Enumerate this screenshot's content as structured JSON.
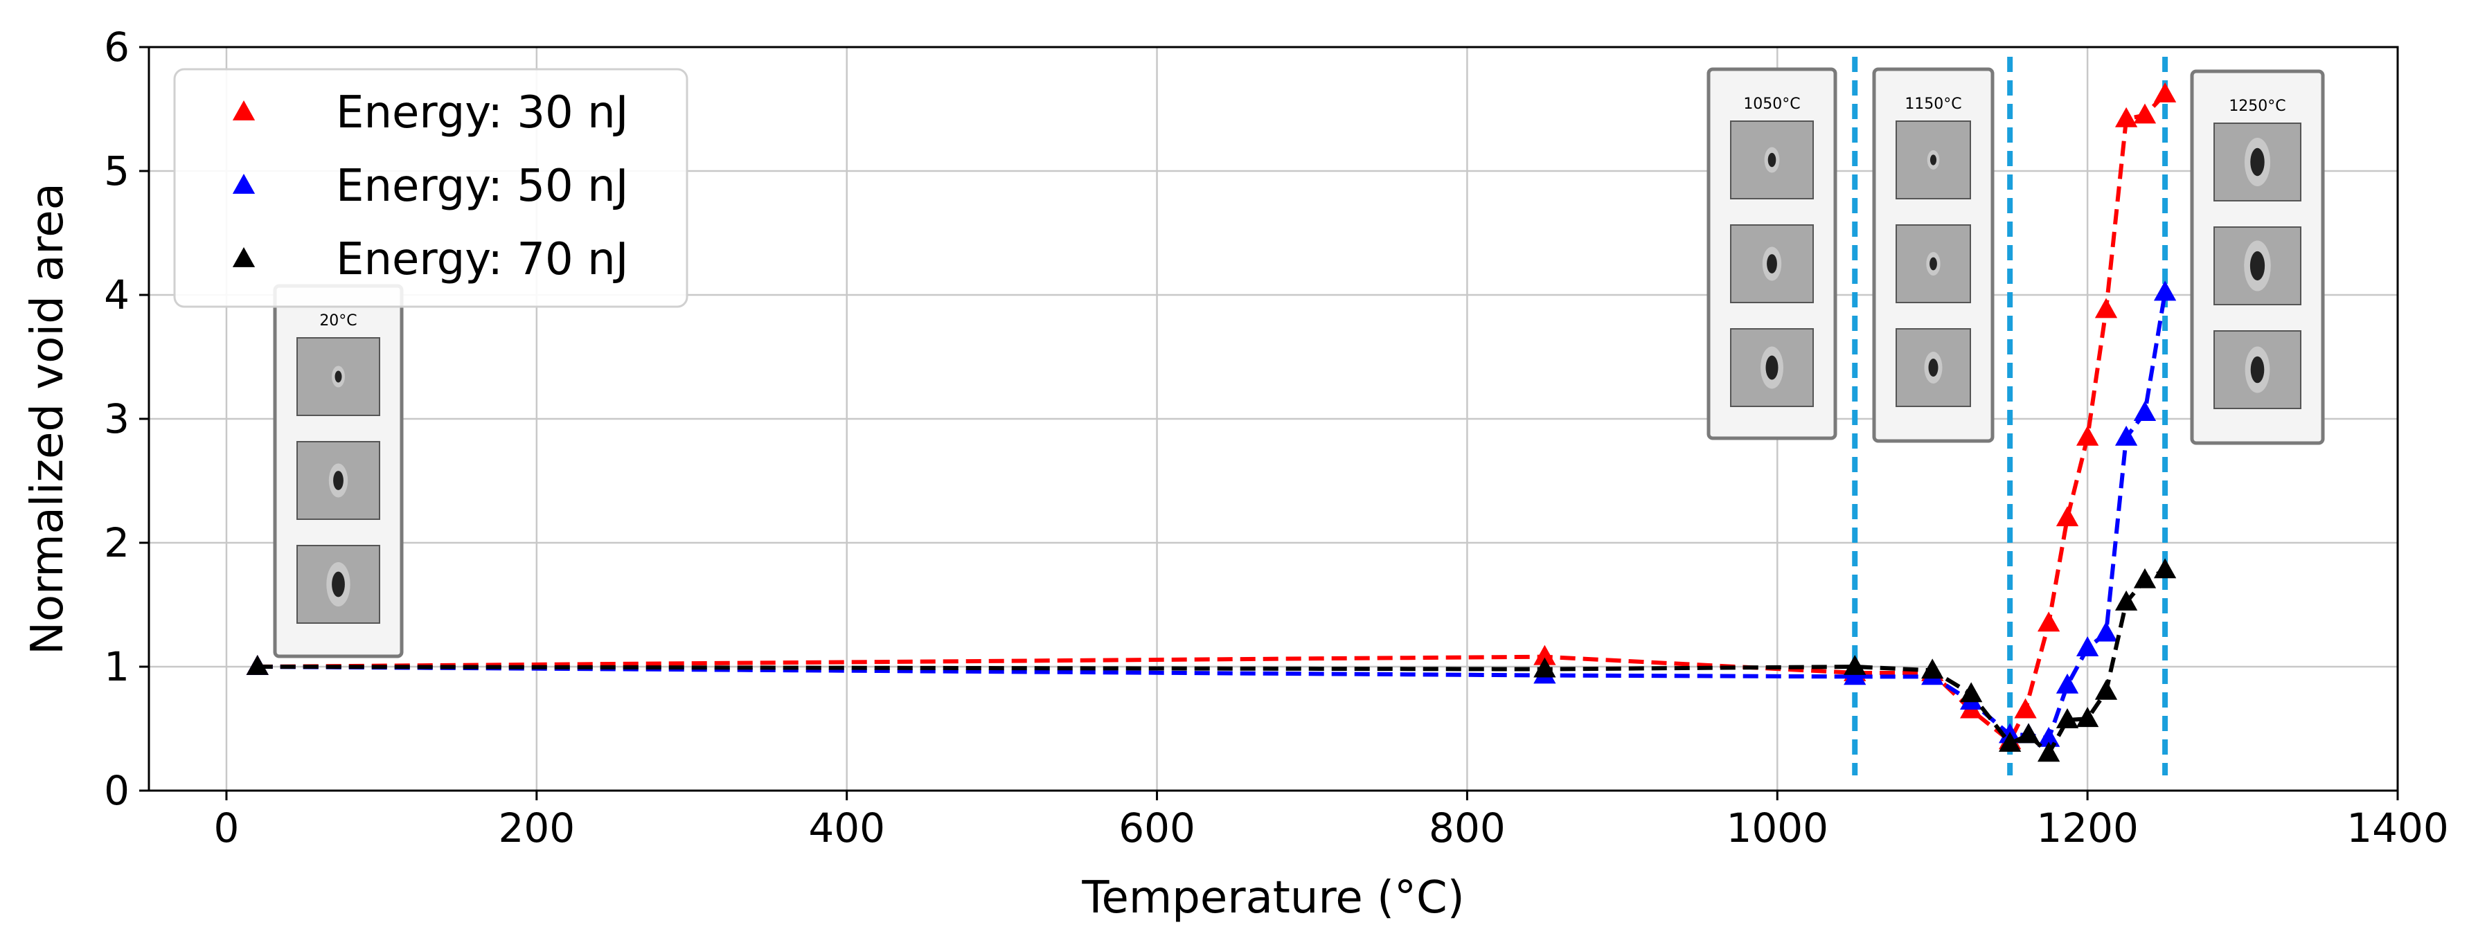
{
  "chart_data": {
    "type": "line",
    "title": "",
    "xlabel": "Temperature (°C)",
    "ylabel": "Normalized void area",
    "xlim": [
      -50,
      1400
    ],
    "ylim": [
      0,
      6
    ],
    "xticks": [
      0,
      200,
      400,
      600,
      800,
      1000,
      1200,
      1400
    ],
    "yticks": [
      0,
      1,
      2,
      3,
      4,
      5,
      6
    ],
    "grid": true,
    "legend_position": "top-left",
    "marker": "triangle",
    "line_style": "dashed",
    "series": [
      {
        "name": "Energy: 30 nJ",
        "color": "#ff0000",
        "points": [
          [
            20,
            1.0
          ],
          [
            850,
            1.08
          ],
          [
            1050,
            0.95
          ],
          [
            1100,
            0.95
          ],
          [
            1125,
            0.65
          ],
          [
            1150,
            0.4
          ],
          [
            1160,
            0.65
          ],
          [
            1175,
            1.35
          ],
          [
            1187,
            2.2
          ],
          [
            1200,
            2.85
          ],
          [
            1212,
            3.88
          ],
          [
            1225,
            5.42
          ],
          [
            1237,
            5.45
          ],
          [
            1250,
            5.62
          ]
        ]
      },
      {
        "name": "Energy: 50 nJ",
        "color": "#0000ff",
        "points": [
          [
            20,
            1.0
          ],
          [
            850,
            0.93
          ],
          [
            1050,
            0.92
          ],
          [
            1100,
            0.92
          ],
          [
            1125,
            0.72
          ],
          [
            1150,
            0.45
          ],
          [
            1162,
            0.45
          ],
          [
            1175,
            0.42
          ],
          [
            1187,
            0.85
          ],
          [
            1200,
            1.15
          ],
          [
            1212,
            1.27
          ],
          [
            1225,
            2.85
          ],
          [
            1237,
            3.05
          ],
          [
            1250,
            4.02
          ]
        ]
      },
      {
        "name": "Energy: 70 nJ",
        "color": "#000000",
        "points": [
          [
            20,
            1.0
          ],
          [
            850,
            0.98
          ],
          [
            1050,
            1.0
          ],
          [
            1100,
            0.97
          ],
          [
            1125,
            0.78
          ],
          [
            1150,
            0.38
          ],
          [
            1162,
            0.45
          ],
          [
            1175,
            0.3
          ],
          [
            1187,
            0.57
          ],
          [
            1200,
            0.58
          ],
          [
            1212,
            0.8
          ],
          [
            1225,
            1.52
          ],
          [
            1237,
            1.7
          ],
          [
            1250,
            1.78
          ]
        ]
      }
    ],
    "reference_lines": {
      "x_values": [
        1050,
        1150,
        1250
      ],
      "color": "#1a9fdc",
      "style": "dashed"
    },
    "insets": [
      {
        "label": "20°C",
        "anchor_x": 20,
        "void_sizes": [
          0.25,
          0.55,
          0.8
        ]
      },
      {
        "label": "1050°C",
        "anchor_x": 1050,
        "void_sizes": [
          0.35,
          0.55,
          0.75
        ]
      },
      {
        "label": "1150°C",
        "anchor_x": 1150,
        "void_sizes": [
          0.2,
          0.3,
          0.5
        ]
      },
      {
        "label": "1250°C",
        "anchor_x": 1250,
        "void_sizes": [
          0.9,
          0.95,
          0.85
        ]
      }
    ]
  }
}
